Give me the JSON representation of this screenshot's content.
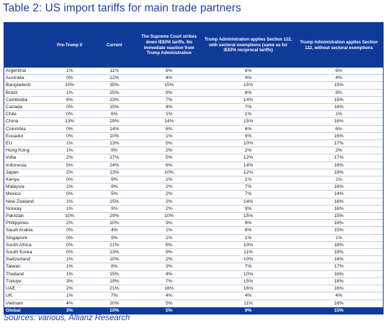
{
  "title": "Table 2: US import tariffs for main trade partners",
  "table": {
    "headers": [
      "",
      "Pre-Trump II",
      "Current",
      "The Supreme Court strikes down IEEPA tariffs. No immediate reaction from Trump Administration",
      "Trump Administration applies Section 122, with sectoral exemptions (same as for IEEPA reciprocal tariffs)",
      "Trump Administration applies Section 122, without sectoral exemptions"
    ],
    "rows": [
      [
        "Argentina",
        "1%",
        "11%",
        "6%",
        "6%",
        "6%"
      ],
      [
        "Australia",
        "0%",
        "12%",
        "4%",
        "4%",
        "4%"
      ],
      [
        "Bangladesh",
        "15%",
        "35%",
        "15%",
        "15%",
        "15%"
      ],
      [
        "Brazil",
        "1%",
        "25%",
        "8%",
        "8%",
        "8%"
      ],
      [
        "Cambodia",
        "6%",
        "23%",
        "7%",
        "14%",
        "15%"
      ],
      [
        "Canada",
        "0%",
        "15%",
        "4%",
        "7%",
        "16%"
      ],
      [
        "Chile",
        "0%",
        "6%",
        "1%",
        "1%",
        "1%"
      ],
      [
        "China",
        "13%",
        "29%",
        "14%",
        "15%",
        "16%"
      ],
      [
        "Colombia",
        "0%",
        "14%",
        "6%",
        "6%",
        "6%"
      ],
      [
        "Ecuador",
        "0%",
        "10%",
        "1%",
        "9%",
        "16%"
      ],
      [
        "EU",
        "1%",
        "13%",
        "5%",
        "10%",
        "17%"
      ],
      [
        "Hong Kong",
        "1%",
        "9%",
        "2%",
        "2%",
        "2%"
      ],
      [
        "India",
        "2%",
        "17%",
        "5%",
        "12%",
        "17%"
      ],
      [
        "Indonesia",
        "5%",
        "24%",
        "6%",
        "14%",
        "16%"
      ],
      [
        "Japan",
        "2%",
        "13%",
        "10%",
        "12%",
        "19%"
      ],
      [
        "Kenya",
        "0%",
        "9%",
        "1%",
        "1%",
        "1%"
      ],
      [
        "Malaysia",
        "1%",
        "9%",
        "2%",
        "7%",
        "16%"
      ],
      [
        "Mexico",
        "0%",
        "5%",
        "2%",
        "7%",
        "14%"
      ],
      [
        "New Zealand",
        "1%",
        "15%",
        "2%",
        "14%",
        "16%"
      ],
      [
        "Norway",
        "1%",
        "9%",
        "2%",
        "9%",
        "16%"
      ],
      [
        "Pakistan",
        "10%",
        "29%",
        "10%",
        "15%",
        "15%"
      ],
      [
        "Philippines",
        "2%",
        "10%",
        "3%",
        "9%",
        "16%"
      ],
      [
        "Saudi Arabia",
        "0%",
        "4%",
        "1%",
        "6%",
        "15%"
      ],
      [
        "Singapore",
        "0%",
        "9%",
        "1%",
        "1%",
        "1%"
      ],
      [
        "South Africa",
        "0%",
        "21%",
        "6%",
        "10%",
        "18%"
      ],
      [
        "South Korea",
        "0%",
        "13%",
        "9%",
        "11%",
        "19%"
      ],
      [
        "Switzerland",
        "1%",
        "10%",
        "2%",
        "10%",
        "16%"
      ],
      [
        "Taiwan",
        "1%",
        "8%",
        "3%",
        "7%",
        "17%"
      ],
      [
        "Thailand",
        "1%",
        "15%",
        "4%",
        "10%",
        "16%"
      ],
      [
        "Türkiye",
        "3%",
        "19%",
        "7%",
        "15%",
        "18%"
      ],
      [
        "UAE",
        "2%",
        "21%",
        "16%",
        "16%",
        "16%"
      ],
      [
        "UK",
        "1%",
        "7%",
        "4%",
        "4%",
        "4%"
      ],
      [
        "Vietnam",
        "4%",
        "20%",
        "5%",
        "11%",
        "16%"
      ]
    ],
    "total": [
      "Global",
      "3%",
      "10%",
      "5%",
      "9%",
      "15%"
    ]
  },
  "source": "Sources: various, Allianz Research",
  "colors": {
    "header_bg": "#0f3a9a",
    "title": "#1e3f9e",
    "row_rule": "#c9cedf"
  }
}
